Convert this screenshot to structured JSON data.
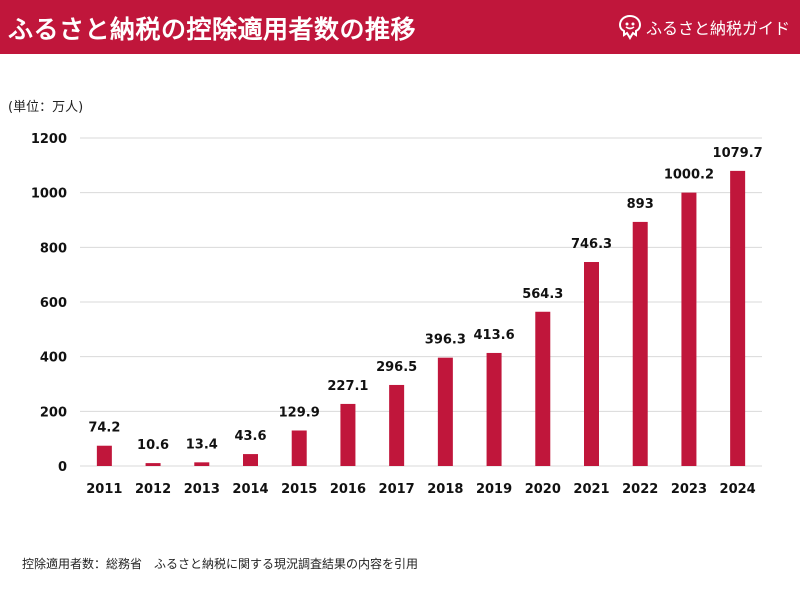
{
  "header": {
    "title": "ふるさと納税の控除適用者数の推移",
    "brand_label": "ふるさと納税ガイド",
    "brand_icon": "furusato-logo-icon",
    "accent_color": "#c0163b"
  },
  "unit_label": "(単位：万人)",
  "source_note": "控除適用者数：総務省　ふるさと納税に関する現況調査結果の内容を引用",
  "chart_data": {
    "type": "bar",
    "title": "ふるさと納税の控除適用者数の推移",
    "xlabel": "",
    "ylabel": "(単位：万人)",
    "categories": [
      "2011",
      "2012",
      "2013",
      "2014",
      "2015",
      "2016",
      "2017",
      "2018",
      "2019",
      "2020",
      "2021",
      "2022",
      "2023",
      "2024"
    ],
    "values": [
      74.2,
      10.6,
      13.4,
      43.6,
      129.9,
      227.1,
      296.5,
      396.3,
      413.6,
      564.3,
      746.3,
      893,
      1000.2,
      1079.7
    ],
    "value_labels": [
      "74.2",
      "10.6",
      "13.4",
      "43.6",
      "129.9",
      "227.1",
      "296.5",
      "396.3",
      "413.6",
      "564.3",
      "746.3",
      "893",
      "1000.2",
      "1079.7"
    ],
    "ylim": [
      0,
      1200
    ],
    "yticks": [
      0,
      200,
      400,
      600,
      800,
      1000,
      1200
    ],
    "grid": true,
    "bar_color": "#c0163b",
    "grid_color": "#d9d9d9"
  }
}
